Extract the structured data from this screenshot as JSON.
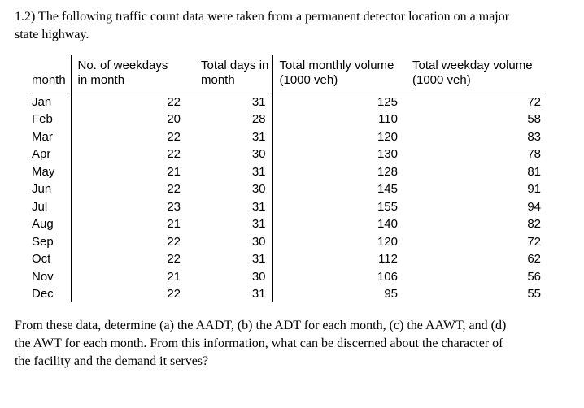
{
  "intro": "1.2) The following traffic count data were taken from a permanent detector location on a major\nstate highway.",
  "table": {
    "columns": [
      "month",
      "No. of weekdays\nin month",
      "Total days in\nmonth",
      "Total monthly volume\n(1000 veh)",
      "Total weekday volume\n(1000 veh)"
    ],
    "rows": [
      [
        "Jan",
        "22",
        "31",
        "125",
        "72"
      ],
      [
        "Feb",
        "20",
        "28",
        "110",
        "58"
      ],
      [
        "Mar",
        "22",
        "31",
        "120",
        "83"
      ],
      [
        "Apr",
        "22",
        "30",
        "130",
        "78"
      ],
      [
        "May",
        "21",
        "31",
        "128",
        "81"
      ],
      [
        "Jun",
        "22",
        "30",
        "145",
        "91"
      ],
      [
        "Jul",
        "23",
        "31",
        "155",
        "94"
      ],
      [
        "Aug",
        "21",
        "31",
        "140",
        "82"
      ],
      [
        "Sep",
        "22",
        "30",
        "120",
        "72"
      ],
      [
        "Oct",
        "22",
        "31",
        "112",
        "62"
      ],
      [
        "Nov",
        "21",
        "30",
        "106",
        "56"
      ],
      [
        "Dec",
        "22",
        "31",
        "95",
        "55"
      ]
    ]
  },
  "question": "From these data, determine (a) the AADT, (b) the ADT for each month, (c) the AAWT, and (d)\nthe AWT for each month. From this information, what can be discerned about the character of\nthe facility and the demand it serves?"
}
